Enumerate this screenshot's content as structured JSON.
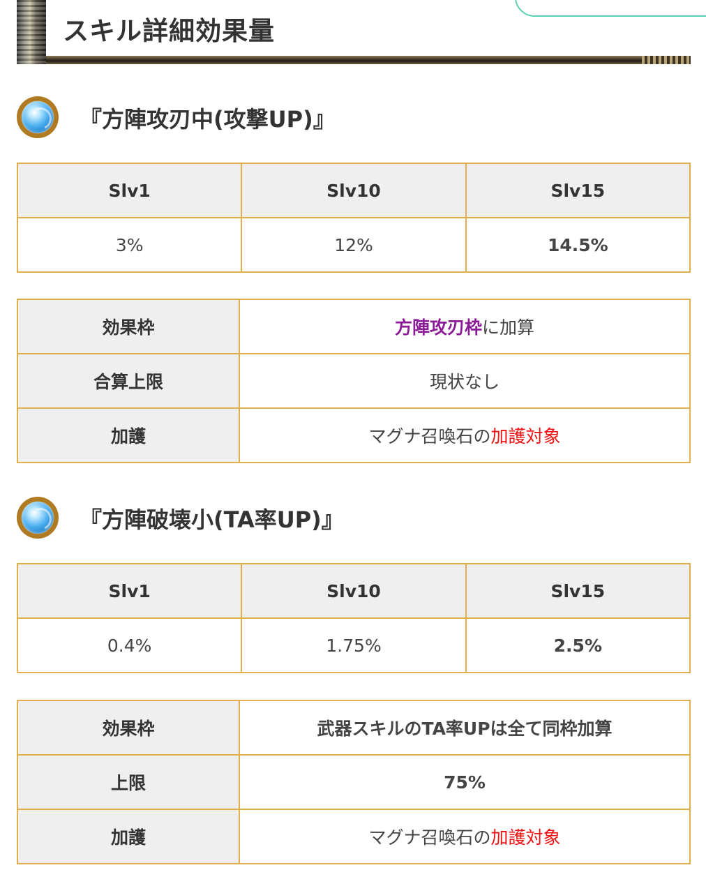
{
  "header": {
    "title": "スキル詳細効果量"
  },
  "skills": [
    {
      "name": "『方陣攻刃中(攻撃UP)』",
      "icon": "blue-orb-skill-icon",
      "levels": {
        "headers": [
          "Slv1",
          "Slv10",
          "Slv15"
        ],
        "values": [
          "3%",
          "12%",
          "14.5%"
        ]
      },
      "details": {
        "frame_label": "効果枠",
        "frame_value_highlight": "方陣攻刃枠",
        "frame_value_rest": "に加算",
        "cap_label": "合算上限",
        "cap_value": "現状なし",
        "blessing_label": "加護",
        "blessing_value_plain": "マグナ召喚石の",
        "blessing_value_highlight": "加護対象"
      }
    },
    {
      "name": "『方陣破壊小(TA率UP)』",
      "icon": "blue-orb-skill-icon",
      "levels": {
        "headers": [
          "Slv1",
          "Slv10",
          "Slv15"
        ],
        "values": [
          "0.4%",
          "1.75%",
          "2.5%"
        ]
      },
      "details": {
        "frame_label": "効果枠",
        "frame_value": "武器スキルのTA率UPは全て同枠加算",
        "cap_label": "上限",
        "cap_value": "75%",
        "blessing_label": "加護",
        "blessing_value_plain": "マグナ召喚石の",
        "blessing_value_highlight": "加護対象"
      }
    }
  ],
  "colors": {
    "border": "#e0b04c",
    "header_cell_bg": "#efefef",
    "highlight_red": "#ee1111",
    "highlight_purple": "#8a1a96",
    "corner_tab": "#5ad1b0"
  }
}
